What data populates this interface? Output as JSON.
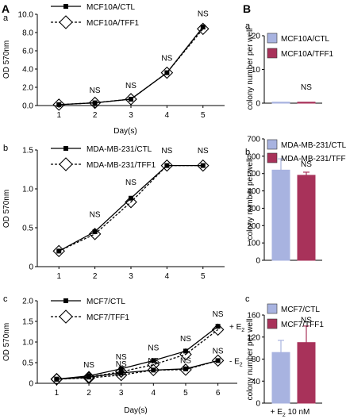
{
  "section_labels": {
    "A": "A",
    "B": "B"
  },
  "chart_data": [
    {
      "id": "Aa",
      "panel": "a",
      "type": "line",
      "xlabel": "Day(s)",
      "ylabel": "OD 570nm",
      "x": [
        1,
        2,
        3,
        4,
        5
      ],
      "ylim": [
        0,
        10
      ],
      "yticks": [
        "0.0",
        "2.0",
        "4.0",
        "6.0",
        "8.0",
        "10.0"
      ],
      "series": [
        {
          "name": "MCF10A/CTL",
          "marker": "square",
          "dash": false,
          "values": [
            0.1,
            0.3,
            0.7,
            3.6,
            8.6
          ]
        },
        {
          "name": "MCF10A/TFF1",
          "marker": "diamond",
          "dash": true,
          "values": [
            0.1,
            0.3,
            0.7,
            3.6,
            8.4
          ]
        }
      ],
      "annotations": [
        {
          "x": 2,
          "y": 1.4,
          "text": "NS"
        },
        {
          "x": 3,
          "y": 1.9,
          "text": "NS"
        },
        {
          "x": 4,
          "y": 4.9,
          "text": "NS"
        },
        {
          "x": 5,
          "y": 9.8,
          "text": "NS"
        }
      ]
    },
    {
      "id": "Ab",
      "panel": "b",
      "type": "line",
      "xlabel": "",
      "ylabel": "OD 570nm",
      "x": [
        1,
        2,
        3,
        4,
        5
      ],
      "ylim": [
        0,
        1.5
      ],
      "yticks": [
        "0",
        "0.5",
        "1.0",
        "1.5"
      ],
      "series": [
        {
          "name": "MDA-MB-231/CTL",
          "marker": "square",
          "dash": false,
          "values": [
            0.2,
            0.45,
            0.88,
            1.3,
            1.3
          ]
        },
        {
          "name": "MDA-MB-231/TFF1",
          "marker": "diamond",
          "dash": true,
          "values": [
            0.2,
            0.42,
            0.83,
            1.3,
            1.3
          ]
        }
      ],
      "annotations": [
        {
          "x": 2,
          "y": 0.64,
          "text": "NS"
        },
        {
          "x": 3,
          "y": 1.05,
          "text": "NS"
        },
        {
          "x": 4,
          "y": 1.46,
          "text": "NS"
        },
        {
          "x": 5,
          "y": 1.46,
          "text": "NS"
        }
      ]
    },
    {
      "id": "Ac",
      "panel": "c",
      "type": "line",
      "xlabel": "Day(s)",
      "ylabel": "OD 570nm",
      "x": [
        1,
        2,
        3,
        4,
        5,
        6
      ],
      "ylim": [
        0,
        2
      ],
      "yticks": [
        "0",
        "0.5",
        "1.0",
        "1.5",
        "2.0"
      ],
      "series": [
        {
          "name": "MCF7/CTL",
          "marker": "square",
          "dash": false,
          "values": [
            0.1,
            0.18,
            0.35,
            0.55,
            0.78,
            1.38
          ],
          "group": "e2"
        },
        {
          "name": "MCF7/TFF1",
          "marker": "diamond",
          "dash": true,
          "values": [
            0.1,
            0.15,
            0.28,
            0.45,
            0.7,
            1.3
          ],
          "group": "e2"
        },
        {
          "name": "",
          "marker": "square",
          "dash": false,
          "values": [
            0.1,
            0.15,
            0.25,
            0.32,
            0.35,
            0.55
          ],
          "group": "noe2"
        },
        {
          "name": "",
          "marker": "diamond",
          "dash": true,
          "values": [
            0.1,
            0.13,
            0.2,
            0.32,
            0.33,
            0.55
          ],
          "group": "noe2"
        }
      ],
      "annotations": [
        {
          "x": 2,
          "y": 0.38,
          "text": "NS"
        },
        {
          "x": 3,
          "y": 0.58,
          "text": "NS"
        },
        {
          "x": 4,
          "y": 0.8,
          "text": "NS"
        },
        {
          "x": 5,
          "y": 1.02,
          "text": "NS"
        },
        {
          "x": 6,
          "y": 1.62,
          "text": "NS"
        },
        {
          "x": 3,
          "y": 0.4,
          "text": "NS"
        },
        {
          "x": 4,
          "y": 0.48,
          "text": "NS"
        },
        {
          "x": 5,
          "y": 0.49,
          "text": "NS"
        },
        {
          "x": 6,
          "y": 0.72,
          "text": "NS"
        }
      ],
      "line_labels": [
        {
          "text": "+ E",
          "sub": "2",
          "y": 1.38
        },
        {
          "text": "- E",
          "sub": "2",
          "y": 0.55
        }
      ]
    },
    {
      "id": "Ba",
      "panel": "a",
      "type": "bar",
      "xlabel": "",
      "ylabel": "colony number per well",
      "ylim": [
        0,
        20
      ],
      "yticks": [
        "0",
        "10",
        "20"
      ],
      "series": [
        {
          "name": "MCF10A/CTL",
          "color": "#a8b3e0",
          "value": 0.3,
          "error": 0
        },
        {
          "name": "MCF10A/TFF1",
          "color": "#a8325a",
          "value": 0.3,
          "error": 0
        }
      ],
      "annotations": [
        {
          "bar": 1,
          "y": 4,
          "text": "NS"
        }
      ]
    },
    {
      "id": "Bb",
      "panel": "b",
      "type": "bar",
      "xlabel": "",
      "ylabel": "colony number per well",
      "ylim": [
        0,
        700
      ],
      "yticks": [
        "0",
        "100",
        "200",
        "300",
        "400",
        "500",
        "600",
        "700"
      ],
      "series": [
        {
          "name": "MDA-MB-231/CTL",
          "color": "#a8b3e0",
          "value": 520,
          "error": 65
        },
        {
          "name": "MDA-MB-231/TFF1",
          "color": "#a8325a",
          "value": 490,
          "error": 18
        }
      ],
      "annotations": [
        {
          "bar": 1,
          "y": 540,
          "text": "NS"
        }
      ]
    },
    {
      "id": "Bc",
      "panel": "c",
      "type": "bar",
      "xlabel": "+ E2 10 nM",
      "xlabel_parts": [
        "+ E",
        "2",
        " 10 nM"
      ],
      "ylabel": "colony number per well",
      "ylim": [
        0,
        160
      ],
      "yticks": [
        "0",
        "40",
        "80",
        "120",
        "160"
      ],
      "series": [
        {
          "name": "MCF7/CTL",
          "color": "#a8b3e0",
          "value": 92,
          "error": 22
        },
        {
          "name": "MCF7/TFF1",
          "color": "#a8325a",
          "value": 110,
          "error": 30
        }
      ],
      "annotations": [
        {
          "bar": 1,
          "y": 146,
          "text": "NS"
        }
      ]
    }
  ]
}
